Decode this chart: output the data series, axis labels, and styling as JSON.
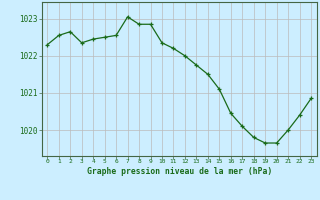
{
  "x": [
    0,
    1,
    2,
    3,
    4,
    5,
    6,
    7,
    8,
    9,
    10,
    11,
    12,
    13,
    14,
    15,
    16,
    17,
    18,
    19,
    20,
    21,
    22,
    23
  ],
  "y": [
    1022.3,
    1022.55,
    1022.65,
    1022.35,
    1022.45,
    1022.5,
    1022.55,
    1023.05,
    1022.85,
    1022.85,
    1022.35,
    1022.2,
    1022.0,
    1021.75,
    1021.5,
    1021.1,
    1020.45,
    1020.1,
    1019.8,
    1019.65,
    1019.65,
    1020.0,
    1020.4,
    1020.85
  ],
  "line_color": "#1a6b1a",
  "marker_color": "#1a6b1a",
  "bg_color": "#cceeff",
  "grid_color": "#bbbbbb",
  "axis_label_color": "#1a6b1a",
  "xlabel": "Graphe pression niveau de la mer (hPa)",
  "yticks": [
    1020,
    1021,
    1022,
    1023
  ],
  "ylim": [
    1019.3,
    1023.45
  ],
  "xlim": [
    -0.5,
    23.5
  ],
  "font_name": "monospace"
}
